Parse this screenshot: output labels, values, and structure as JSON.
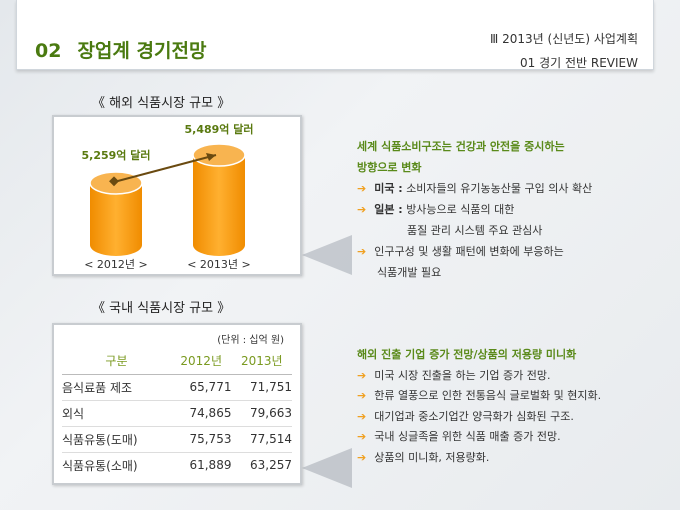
{
  "header": {
    "section_number": "02",
    "section_title": "장업계 경기전망",
    "chapter": "Ⅲ  2013년 (신년도) 사업계획",
    "subchapter": "01  경기 전반 REVIEW"
  },
  "overseas": {
    "title": "《  해외 식품시장 규모  》",
    "summary_line1": "세계 식품소비구조는 건강과 안전을 중시하는",
    "summary_line2": "방향으로 변화",
    "bullets": [
      {
        "label": "미국 :",
        "text": "소비자들의 유기농농산물 구입 의사 확산"
      },
      {
        "label": "일본 :",
        "text": "방사능으로 식품의 대한",
        "text2": "품질 관리 시스템 주요 관심사"
      },
      {
        "text": "인구구성 및 생활 패턴에 변화에 부응하는",
        "text2": "식품개발 필요"
      }
    ]
  },
  "chart_data": {
    "type": "bar",
    "categories": [
      "< 2012년 >",
      "< 2013년 >"
    ],
    "values": [
      5259,
      5489
    ],
    "data_labels": [
      "5,259억 달러",
      "5,489억 달러"
    ],
    "unit": "억 달러",
    "color": "#f5a21a"
  },
  "domestic": {
    "title": "《  국내 식품시장 규모  》",
    "unit": "(단위 : 십억 원)",
    "columns": [
      "구분",
      "2012년",
      "2013년"
    ],
    "rows": [
      [
        "음식료품 제조",
        "65,771",
        "71,751"
      ],
      [
        "외식",
        "74,865",
        "79,663"
      ],
      [
        "식품유통(도매)",
        "75,753",
        "77,514"
      ],
      [
        "식품유통(소매)",
        "61,889",
        "63,257"
      ]
    ],
    "summary": "해외 진출 기업 증가 전망/상품의 저용량 미니화",
    "bullets": [
      "미국 시장 진출을 하는 기업 증가 전망.",
      "한류 열풍으로 인한 전통음식 글로벌화 및 현지화.",
      "대기업과 중소기업간 양극화가 심화된 구조.",
      "국내 싱글족을 위한 식품 매출 증가 전망.",
      "상품의 미니화, 저용량화."
    ]
  }
}
